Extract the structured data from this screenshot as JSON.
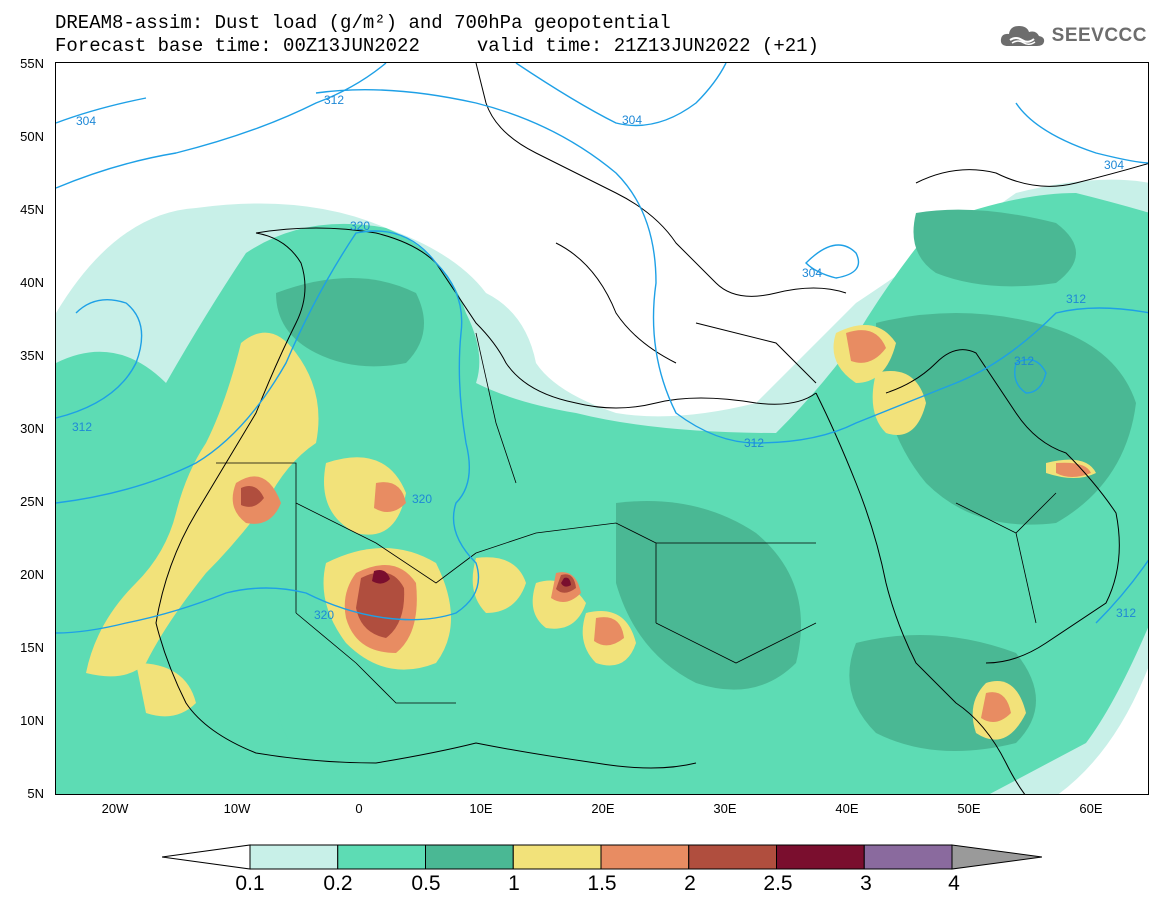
{
  "header": {
    "title_line1": "DREAM8-assim: Dust load (g/m²) and 700hPa geopotential",
    "title_line2": "Forecast base time: 00Z13JUN2022     valid time: 21Z13JUN2022 (+21)",
    "logo_text": "SEEVCCC"
  },
  "map": {
    "lat_labels": [
      "55N",
      "50N",
      "45N",
      "40N",
      "35N",
      "30N",
      "25N",
      "20N",
      "15N",
      "10N",
      "5N"
    ],
    "lon_labels": [
      "20W",
      "10W",
      "0",
      "10E",
      "20E",
      "30E",
      "40E",
      "50E",
      "60E"
    ],
    "contour_labels": [
      "304",
      "312",
      "304",
      "304",
      "320",
      "304",
      "312",
      "312",
      "320",
      "312",
      "312",
      "320",
      "312"
    ]
  },
  "colorbar": {
    "ticks": [
      "0.1",
      "0.2",
      "0.5",
      "1",
      "1.5",
      "2",
      "2.5",
      "3",
      "4"
    ],
    "colors": [
      "#c8f0e8",
      "#5ddcb4",
      "#4ab894",
      "#f2e27a",
      "#e88c62",
      "#b04e3e",
      "#7a0e2e",
      "#8a6a9e"
    ],
    "cap_low": "#ffffff",
    "cap_high": "#9a9a9a"
  }
}
